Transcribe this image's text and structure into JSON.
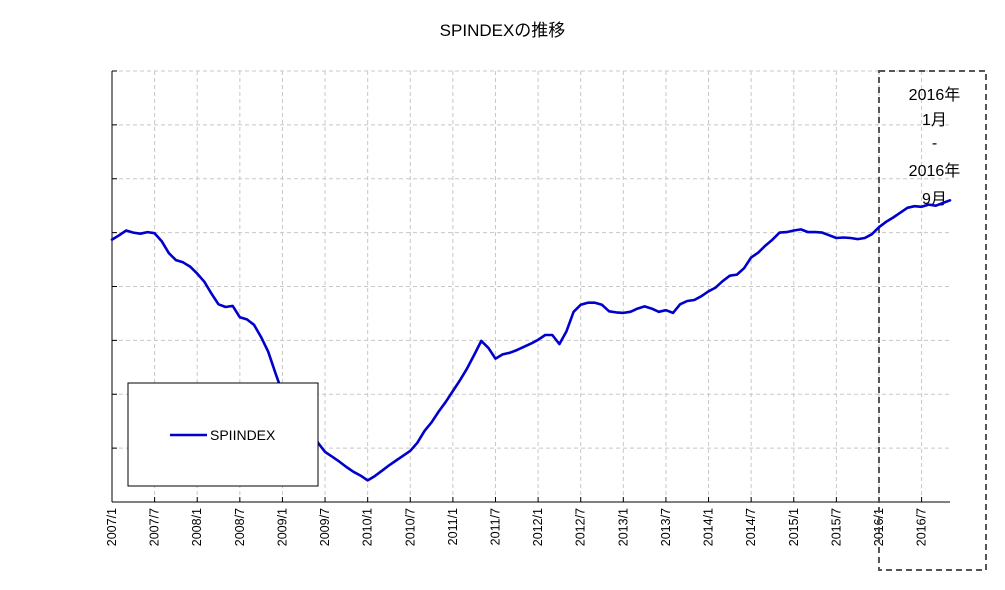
{
  "chart_data": {
    "type": "line",
    "title": "SPINDEXの推移",
    "xlabel": "",
    "ylabel": "",
    "x_ticks": [
      "2007/1",
      "2007/7",
      "2008/1",
      "2008/7",
      "2009/1",
      "2009/7",
      "2010/1",
      "2010/7",
      "2011/1",
      "2011/7",
      "2012/1",
      "2012/7",
      "2013/1",
      "2013/7",
      "2014/1",
      "2014/7",
      "2015/1",
      "2015/7",
      "2016/1",
      "2016/7"
    ],
    "x_start": "2007/1",
    "x_end": "2016/11",
    "grid": true,
    "y_ticks_labeled": false,
    "legend_position": "lower-left",
    "series": [
      {
        "name": "SPIINDEX",
        "color": "#0000cc",
        "values": [
          [
            "2007/1",
            48.7
          ],
          [
            "2007/2",
            49.5
          ],
          [
            "2007/3",
            50.4
          ],
          [
            "2007/4",
            50.0
          ],
          [
            "2007/5",
            49.8
          ],
          [
            "2007/6",
            50.1
          ],
          [
            "2007/7",
            49.9
          ],
          [
            "2007/8",
            48.4
          ],
          [
            "2007/9",
            46.2
          ],
          [
            "2007/10",
            44.9
          ],
          [
            "2007/11",
            44.5
          ],
          [
            "2007/12",
            43.7
          ],
          [
            "2008/1",
            42.4
          ],
          [
            "2008/2",
            40.9
          ],
          [
            "2008/3",
            38.7
          ],
          [
            "2008/4",
            36.7
          ],
          [
            "2008/5",
            36.2
          ],
          [
            "2008/6",
            36.4
          ],
          [
            "2008/7",
            34.3
          ],
          [
            "2008/8",
            33.9
          ],
          [
            "2008/9",
            32.9
          ],
          [
            "2008/10",
            30.6
          ],
          [
            "2008/11",
            27.9
          ],
          [
            "2008/12",
            24.0
          ],
          [
            "2009/1",
            20.3
          ],
          [
            "2009/2",
            18.2
          ],
          [
            "2009/3",
            17.4
          ],
          [
            "2009/4",
            15.9
          ],
          [
            "2009/5",
            13.9
          ],
          [
            "2009/6",
            11.0
          ],
          [
            "2009/7",
            9.3
          ],
          [
            "2009/8",
            8.4
          ],
          [
            "2009/9",
            7.5
          ],
          [
            "2009/10",
            6.5
          ],
          [
            "2009/11",
            5.6
          ],
          [
            "2009/12",
            4.9
          ],
          [
            "2010/1",
            4.0
          ],
          [
            "2010/2",
            4.8
          ],
          [
            "2010/3",
            5.8
          ],
          [
            "2010/4",
            6.8
          ],
          [
            "2010/5",
            7.7
          ],
          [
            "2010/6",
            8.6
          ],
          [
            "2010/7",
            9.5
          ],
          [
            "2010/8",
            11.0
          ],
          [
            "2010/9",
            13.2
          ],
          [
            "2010/10",
            14.8
          ],
          [
            "2010/11",
            16.8
          ],
          [
            "2010/12",
            18.6
          ],
          [
            "2011/1",
            20.6
          ],
          [
            "2011/2",
            22.6
          ],
          [
            "2011/3",
            24.8
          ],
          [
            "2011/4",
            27.3
          ],
          [
            "2011/5",
            29.9
          ],
          [
            "2011/6",
            28.6
          ],
          [
            "2011/7",
            26.6
          ],
          [
            "2011/8",
            27.4
          ],
          [
            "2011/9",
            27.7
          ],
          [
            "2011/10",
            28.2
          ],
          [
            "2011/11",
            28.8
          ],
          [
            "2011/12",
            29.4
          ],
          [
            "2012/1",
            30.1
          ],
          [
            "2012/2",
            31.0
          ],
          [
            "2012/3",
            31.0
          ],
          [
            "2012/4",
            29.3
          ],
          [
            "2012/5",
            31.7
          ],
          [
            "2012/6",
            35.3
          ],
          [
            "2012/7",
            36.6
          ],
          [
            "2012/8",
            37.0
          ],
          [
            "2012/9",
            37.0
          ],
          [
            "2012/10",
            36.6
          ],
          [
            "2012/11",
            35.4
          ],
          [
            "2012/12",
            35.2
          ],
          [
            "2013/1",
            35.1
          ],
          [
            "2013/2",
            35.3
          ],
          [
            "2013/3",
            35.9
          ],
          [
            "2013/4",
            36.3
          ],
          [
            "2013/5",
            35.9
          ],
          [
            "2013/6",
            35.3
          ],
          [
            "2013/7",
            35.6
          ],
          [
            "2013/8",
            35.1
          ],
          [
            "2013/9",
            36.7
          ],
          [
            "2013/10",
            37.3
          ],
          [
            "2013/11",
            37.5
          ],
          [
            "2013/12",
            38.2
          ],
          [
            "2014/1",
            39.1
          ],
          [
            "2014/2",
            39.8
          ],
          [
            "2014/3",
            41.0
          ],
          [
            "2014/4",
            42.0
          ],
          [
            "2014/5",
            42.2
          ],
          [
            "2014/6",
            43.4
          ],
          [
            "2014/7",
            45.4
          ],
          [
            "2014/8",
            46.3
          ],
          [
            "2014/9",
            47.6
          ],
          [
            "2014/10",
            48.7
          ],
          [
            "2014/11",
            50.0
          ],
          [
            "2014/12",
            50.1
          ],
          [
            "2015/1",
            50.4
          ],
          [
            "2015/2",
            50.6
          ],
          [
            "2015/3",
            50.1
          ],
          [
            "2015/4",
            50.1
          ],
          [
            "2015/5",
            50.0
          ],
          [
            "2015/6",
            49.5
          ],
          [
            "2015/7",
            49.0
          ],
          [
            "2015/8",
            49.1
          ],
          [
            "2015/9",
            49.0
          ],
          [
            "2015/10",
            48.8
          ],
          [
            "2015/11",
            49.0
          ],
          [
            "2015/12",
            49.7
          ],
          [
            "2016/1",
            51.0
          ],
          [
            "2016/2",
            52.0
          ],
          [
            "2016/3",
            52.8
          ],
          [
            "2016/4",
            53.7
          ],
          [
            "2016/5",
            54.6
          ],
          [
            "2016/6",
            54.9
          ],
          [
            "2016/7",
            54.8
          ],
          [
            "2016/8",
            55.2
          ],
          [
            "2016/9",
            55.0
          ],
          [
            "2016/10",
            55.5
          ],
          [
            "2016/11",
            56.0
          ]
        ]
      }
    ],
    "annotation": {
      "from": "2016/1",
      "to": "2016/9",
      "lines": [
        "2016年",
        "1月",
        "-",
        "2016年",
        "9月"
      ]
    }
  }
}
